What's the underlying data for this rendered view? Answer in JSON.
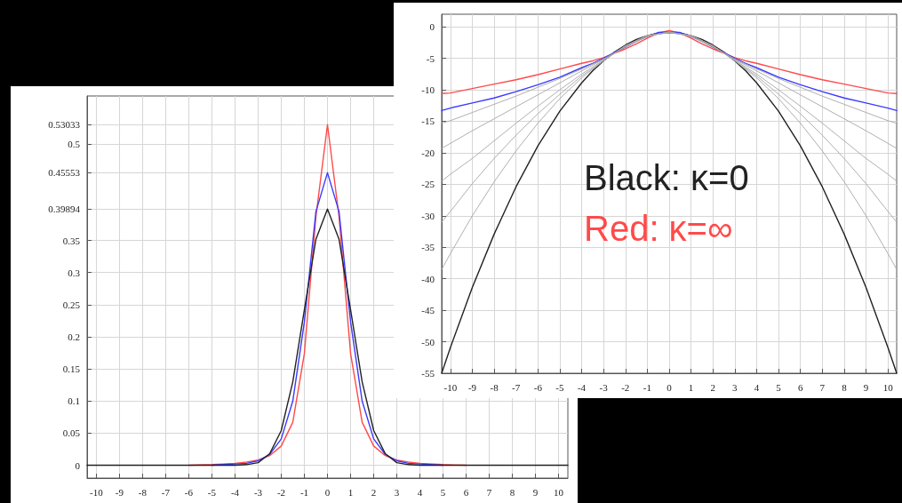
{
  "chart_data": [
    {
      "type": "line",
      "x": [
        -10.4,
        -10,
        -9,
        -8,
        -7,
        -6,
        -5,
        -4,
        -3.5,
        -3,
        -2.5,
        -2,
        -1.5,
        -1,
        -0.5,
        0,
        0.5,
        1,
        1.5,
        2,
        2.5,
        3,
        3.5,
        4,
        5,
        6,
        7,
        8,
        9,
        10,
        10.4
      ],
      "series": [
        {
          "color": "#ff4a4a",
          "values": [
            null,
            null,
            null,
            null,
            null,
            0,
            0.001,
            0.003,
            0.005,
            0.008,
            0.015,
            0.03,
            0.067,
            0.174,
            0.387,
            0.53033,
            0.387,
            0.174,
            0.067,
            0.03,
            0.015,
            0.008,
            0.005,
            0.003,
            0.001,
            0,
            null,
            null,
            null,
            null,
            null
          ]
        },
        {
          "color": "#3a3aff",
          "values": [
            null,
            null,
            null,
            null,
            null,
            null,
            0,
            0.002,
            0.003,
            0.007,
            0.017,
            0.041,
            0.1,
            0.223,
            0.395,
            0.45553,
            0.395,
            0.223,
            0.1,
            0.041,
            0.017,
            0.007,
            0.003,
            0.002,
            0,
            null,
            null,
            null,
            null,
            null,
            null
          ]
        },
        {
          "color": "#222222",
          "values": [
            0,
            0,
            0,
            0,
            0,
            0,
            0,
            0,
            0.001,
            0.004,
            0.018,
            0.054,
            0.13,
            0.242,
            0.352,
            0.39894,
            0.352,
            0.242,
            0.13,
            0.054,
            0.018,
            0.004,
            0.001,
            0,
            0,
            0,
            0,
            0,
            0,
            0,
            0
          ]
        }
      ],
      "xlim": [
        -10.4,
        10.4
      ],
      "xticks": [
        -10,
        -9,
        -8,
        -7,
        -6,
        -5,
        -4,
        -3,
        -2,
        -1,
        0,
        1,
        2,
        3,
        4,
        5,
        6,
        7,
        8,
        9,
        10
      ],
      "ylim": [
        -0.02,
        0.575
      ],
      "yticks": [
        0,
        0.05,
        0.1,
        0.15,
        0.2,
        0.25,
        0.3,
        0.35,
        0.39894,
        0.45553,
        0.5,
        0.53033
      ],
      "grid": true,
      "marker": "none",
      "line_style": "solid"
    },
    {
      "type": "line",
      "x": [
        -10.4,
        -10,
        -9,
        -8,
        -7,
        -6,
        -5,
        -4,
        -3.5,
        -3,
        -2.5,
        -2,
        -1.5,
        -1,
        -0.5,
        0,
        0.5,
        1,
        1.5,
        2,
        2.5,
        3,
        3.5,
        4,
        5,
        6,
        7,
        8,
        9,
        10,
        10.4
      ],
      "series": [
        {
          "color": "#222222",
          "values": [
            -55.0,
            -50.9,
            -41.4,
            -32.9,
            -25.4,
            -18.9,
            -13.4,
            -8.9,
            -7.0,
            -5.4,
            -4.0,
            -2.9,
            -2.0,
            -1.4,
            -1.0,
            -0.9,
            -1.0,
            -1.4,
            -2.0,
            -2.9,
            -4.0,
            -5.4,
            -7.0,
            -8.9,
            -13.4,
            -18.9,
            -25.4,
            -32.9,
            -41.4,
            -50.9,
            -55.0
          ]
        },
        {
          "color": "#ff4a4a",
          "values": [
            -10.6,
            -10.5,
            -9.8,
            -9.1,
            -8.4,
            -7.6,
            -6.7,
            -5.8,
            -5.4,
            -4.9,
            -4.2,
            -3.5,
            -2.7,
            -1.8,
            -1.0,
            -0.6,
            -1.0,
            -1.8,
            -2.7,
            -3.5,
            -4.2,
            -4.9,
            -5.4,
            -5.8,
            -6.7,
            -7.6,
            -8.4,
            -9.1,
            -9.8,
            -10.5,
            -10.6
          ]
        },
        {
          "color": "#3a3aff",
          "values": [
            -13.3,
            -12.9,
            -12.1,
            -11.3,
            -10.3,
            -9.2,
            -8.0,
            -6.5,
            -5.8,
            -5.0,
            -4.1,
            -3.2,
            -2.3,
            -1.5,
            -0.9,
            -0.8,
            -0.9,
            -1.5,
            -2.3,
            -3.2,
            -4.1,
            -5.0,
            -5.8,
            -6.5,
            -8.0,
            -9.2,
            -10.3,
            -11.3,
            -12.1,
            -12.9,
            -13.3
          ]
        },
        {
          "color": "#a6a6a6",
          "x": [
            -10.4,
            -10,
            -9,
            -8,
            -7,
            -6,
            -5,
            -4,
            -3,
            -2,
            -1,
            0,
            1,
            2,
            3,
            4,
            5,
            6,
            7,
            8,
            9,
            10,
            10.4
          ],
          "values": [
            -15.3,
            -14.9,
            -13.6,
            -12.3,
            -11.0,
            -9.6,
            -8.2,
            -6.7,
            -5.1,
            -3.2,
            -1.5,
            -0.8,
            -1.5,
            -3.2,
            -5.1,
            -6.7,
            -8.2,
            -9.6,
            -11.0,
            -12.3,
            -13.6,
            -14.9,
            -15.3
          ]
        },
        {
          "color": "#a6a6a6",
          "x": [
            -10.4,
            -10,
            -9,
            -8,
            -7,
            -6,
            -5,
            -4,
            -3,
            -2,
            -1,
            0,
            1,
            2,
            3,
            4,
            5,
            6,
            7,
            8,
            9,
            10,
            10.4
          ],
          "values": [
            -19.3,
            -18.5,
            -16.5,
            -14.6,
            -12.7,
            -10.8,
            -8.9,
            -7.0,
            -5.2,
            -3.1,
            -1.5,
            -0.8,
            -1.5,
            -3.1,
            -5.2,
            -7.0,
            -8.9,
            -10.8,
            -12.7,
            -14.6,
            -16.5,
            -18.5,
            -19.3
          ]
        },
        {
          "color": "#a6a6a6",
          "x": [
            -10.4,
            -10,
            -9,
            -8,
            -7,
            -6,
            -5,
            -4,
            -3,
            -2,
            -1,
            0,
            1,
            2,
            3,
            4,
            5,
            6,
            7,
            8,
            9,
            10,
            10.4
          ],
          "values": [
            -24.5,
            -23.4,
            -20.9,
            -18.1,
            -15.3,
            -12.6,
            -10.0,
            -7.5,
            -5.3,
            -3.1,
            -1.4,
            -0.9,
            -1.4,
            -3.1,
            -5.3,
            -7.5,
            -10.0,
            -12.6,
            -15.3,
            -18.1,
            -20.9,
            -23.4,
            -24.5
          ]
        },
        {
          "color": "#a6a6a6",
          "x": [
            -10.4,
            -10,
            -9,
            -8,
            -7,
            -6,
            -5,
            -4,
            -3,
            -2,
            -1,
            0,
            1,
            2,
            3,
            4,
            5,
            6,
            7,
            8,
            9,
            10,
            10.4
          ],
          "values": [
            -31.0,
            -29.3,
            -24.9,
            -20.9,
            -17.2,
            -13.8,
            -10.7,
            -7.8,
            -5.4,
            -3.0,
            -1.4,
            -0.9,
            -1.4,
            -3.0,
            -5.4,
            -7.8,
            -10.7,
            -13.8,
            -17.2,
            -20.9,
            -24.9,
            -29.3,
            -31.0
          ]
        },
        {
          "color": "#a6a6a6",
          "x": [
            -10.4,
            -10,
            -9,
            -8,
            -7,
            -6,
            -5,
            -4,
            -3,
            -2,
            -1,
            0,
            1,
            2,
            3,
            4,
            5,
            6,
            7,
            8,
            9,
            10,
            10.4
          ],
          "values": [
            -38.5,
            -36.0,
            -30.0,
            -24.6,
            -19.7,
            -15.3,
            -11.4,
            -8.1,
            -5.4,
            -3.0,
            -1.4,
            -0.9,
            -1.4,
            -3.0,
            -5.4,
            -8.1,
            -11.4,
            -15.3,
            -19.7,
            -24.6,
            -30.0,
            -36.0,
            -38.5
          ]
        }
      ],
      "xlim": [
        -10.4,
        10.4
      ],
      "xticks": [
        -10,
        -9,
        -8,
        -7,
        -6,
        -5,
        -4,
        -3,
        -2,
        -1,
        0,
        1,
        2,
        3,
        4,
        5,
        6,
        7,
        8,
        9,
        10
      ],
      "ylim": [
        -55,
        2
      ],
      "yticks": [
        -55,
        -50,
        -45,
        -40,
        -35,
        -30,
        -25,
        -20,
        -15,
        -10,
        -5,
        0
      ],
      "grid": true,
      "marker": "none",
      "line_style": "solid",
      "annotations": [
        "Black: κ=0",
        "Red: κ=∞"
      ]
    }
  ]
}
